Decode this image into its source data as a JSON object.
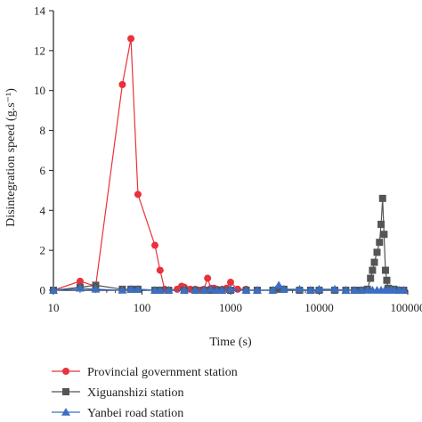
{
  "chart_data": {
    "type": "line",
    "title": "",
    "xlabel": "Time (s)",
    "ylabel": "Disintegration speed (g.s⁻¹)",
    "x_scale": "log",
    "xlim": [
      10,
      100000
    ],
    "ylim": [
      0,
      14
    ],
    "x_ticks": [
      10,
      100,
      1000,
      10000,
      100000
    ],
    "x_tick_labels": [
      "10",
      "100",
      "1000",
      "10000",
      "100000"
    ],
    "y_ticks": [
      0,
      2,
      4,
      6,
      8,
      10,
      12,
      14
    ],
    "y_tick_labels": [
      "0",
      "2",
      "4",
      "6",
      "8",
      "10",
      "12",
      "14"
    ],
    "grid": false,
    "legend_position": "bottom",
    "series": [
      {
        "name": "Provincial government station",
        "color": "#e8323c",
        "marker": "circle",
        "x": [
          10,
          20,
          30,
          60,
          75,
          90,
          140,
          160,
          180,
          200,
          250,
          280,
          300,
          350,
          400,
          450,
          500,
          550,
          600,
          650,
          700,
          800,
          900,
          1000,
          1200,
          1500
        ],
        "y": [
          0.0,
          0.45,
          0.2,
          10.3,
          12.6,
          4.8,
          2.25,
          1.0,
          0.05,
          0.0,
          0.05,
          0.2,
          0.15,
          0.05,
          0.05,
          0.0,
          0.05,
          0.6,
          0.1,
          0.1,
          0.05,
          0.05,
          0.1,
          0.4,
          0.05,
          0.05
        ]
      },
      {
        "name": "Xiguanshizi station",
        "color": "#555555",
        "marker": "square",
        "x": [
          10,
          20,
          30,
          60,
          75,
          90,
          140,
          160,
          200,
          300,
          400,
          500,
          600,
          700,
          800,
          1000,
          1500,
          2000,
          3000,
          3500,
          4000,
          6000,
          8000,
          10000,
          15000,
          20000,
          25000,
          30000,
          35000,
          38000,
          40000,
          42000,
          45000,
          48000,
          50000,
          52000,
          54000,
          56000,
          58000,
          60000,
          62000,
          65000,
          70000,
          80000,
          90000
        ],
        "y": [
          0,
          0.15,
          0.25,
          0.05,
          0.05,
          0.05,
          0.0,
          0.0,
          0.0,
          0.0,
          0.0,
          0.0,
          0.0,
          0.0,
          0.0,
          0.0,
          0.0,
          0.0,
          0.0,
          0.05,
          0.05,
          0.0,
          0.0,
          0.0,
          0.0,
          0.0,
          0.0,
          0.0,
          0.05,
          0.6,
          1.0,
          1.4,
          1.9,
          2.4,
          3.3,
          4.6,
          2.8,
          1.0,
          0.5,
          0.1,
          0.05,
          0.05,
          0.05,
          0.0,
          0.0
        ]
      },
      {
        "name": "Yanbei road station",
        "color": "#3a6fc4",
        "marker": "triangle",
        "x": [
          10,
          20,
          30,
          60,
          75,
          90,
          140,
          160,
          200,
          300,
          400,
          500,
          600,
          700,
          800,
          1000,
          1500,
          2000,
          3000,
          3500,
          4000,
          6000,
          8000,
          10000,
          15000,
          20000,
          25000,
          30000,
          35000,
          40000,
          45000,
          50000,
          55000,
          60000,
          65000,
          70000,
          80000,
          90000
        ],
        "y": [
          0,
          0.1,
          0.05,
          0.0,
          0.05,
          0.05,
          0.0,
          0.0,
          0.0,
          0.0,
          0.0,
          0.0,
          0.05,
          0.0,
          0.0,
          0.05,
          0.0,
          0.0,
          0.0,
          0.25,
          0.05,
          0.05,
          0.0,
          0.05,
          0.05,
          0.0,
          0.0,
          0.0,
          0.0,
          0.0,
          0.0,
          0.0,
          0.0,
          0.0,
          0.0,
          0.0,
          0.0,
          0.0
        ]
      }
    ]
  }
}
